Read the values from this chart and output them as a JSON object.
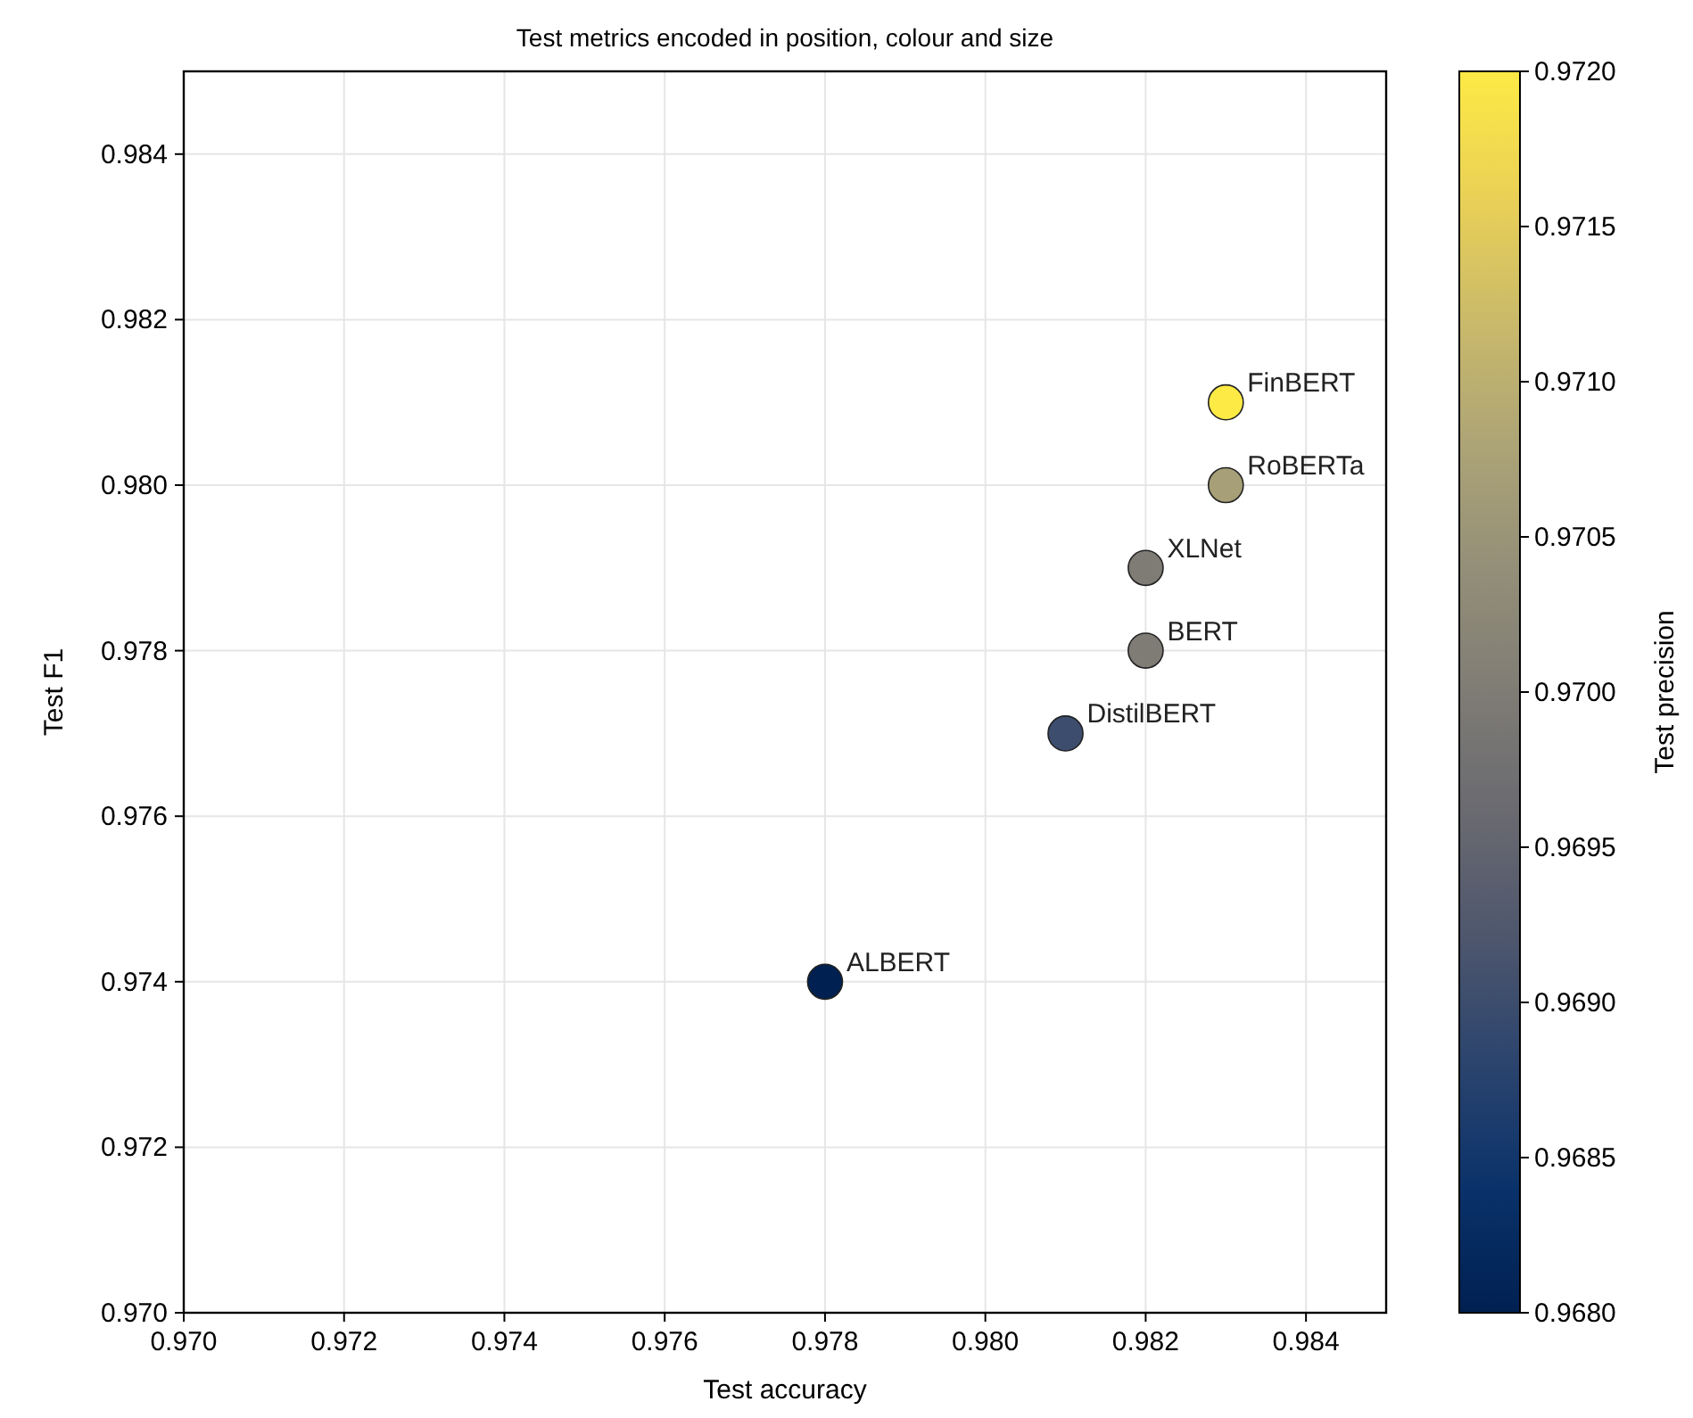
{
  "chart_data": {
    "type": "scatter",
    "title": "Test metrics encoded in position, colour and size",
    "xlabel": "Test accuracy",
    "ylabel": "Test F1",
    "clabel": "Test precision",
    "series": [
      {
        "name": "FinBERT",
        "x": [
          0.983
        ],
        "values": [
          0.981
        ],
        "cvalues": [
          0.972
        ]
      },
      {
        "name": "RoBERTa",
        "x": [
          0.983
        ],
        "values": [
          0.98
        ],
        "cvalues": [
          0.9707
        ]
      },
      {
        "name": "XLNet",
        "x": [
          0.982
        ],
        "values": [
          0.979
        ],
        "cvalues": [
          0.97
        ]
      },
      {
        "name": "BERT",
        "x": [
          0.982
        ],
        "values": [
          0.978
        ],
        "cvalues": [
          0.97
        ]
      },
      {
        "name": "DistilBERT",
        "x": [
          0.981
        ],
        "values": [
          0.977
        ],
        "cvalues": [
          0.969
        ]
      },
      {
        "name": "ALBERT",
        "x": [
          0.978
        ],
        "values": [
          0.974
        ],
        "cvalues": [
          0.968
        ]
      }
    ],
    "xlim": [
      0.97,
      0.985
    ],
    "ylim": [
      0.97,
      0.985
    ],
    "xticks": [
      {
        "value": 0.97,
        "label": "0.970"
      },
      {
        "value": 0.972,
        "label": "0.972"
      },
      {
        "value": 0.974,
        "label": "0.974"
      },
      {
        "value": 0.976,
        "label": "0.976"
      },
      {
        "value": 0.978,
        "label": "0.978"
      },
      {
        "value": 0.98,
        "label": "0.980"
      },
      {
        "value": 0.982,
        "label": "0.982"
      },
      {
        "value": 0.984,
        "label": "0.984"
      }
    ],
    "yticks": [
      {
        "value": 0.97,
        "label": "0.970"
      },
      {
        "value": 0.972,
        "label": "0.972"
      },
      {
        "value": 0.974,
        "label": "0.974"
      },
      {
        "value": 0.976,
        "label": "0.976"
      },
      {
        "value": 0.978,
        "label": "0.978"
      },
      {
        "value": 0.98,
        "label": "0.980"
      },
      {
        "value": 0.982,
        "label": "0.982"
      },
      {
        "value": 0.984,
        "label": "0.984"
      }
    ],
    "clim": [
      0.968,
      0.972
    ],
    "cticks": [
      {
        "value": 0.968,
        "label": "0.9680"
      },
      {
        "value": 0.9685,
        "label": "0.9685"
      },
      {
        "value": 0.969,
        "label": "0.9690"
      },
      {
        "value": 0.9695,
        "label": "0.9695"
      },
      {
        "value": 0.97,
        "label": "0.9700"
      },
      {
        "value": 0.9705,
        "label": "0.9705"
      },
      {
        "value": 0.971,
        "label": "0.9710"
      },
      {
        "value": 0.9715,
        "label": "0.9715"
      },
      {
        "value": 0.972,
        "label": "0.9720"
      }
    ],
    "grid": true,
    "marker": "circle"
  }
}
